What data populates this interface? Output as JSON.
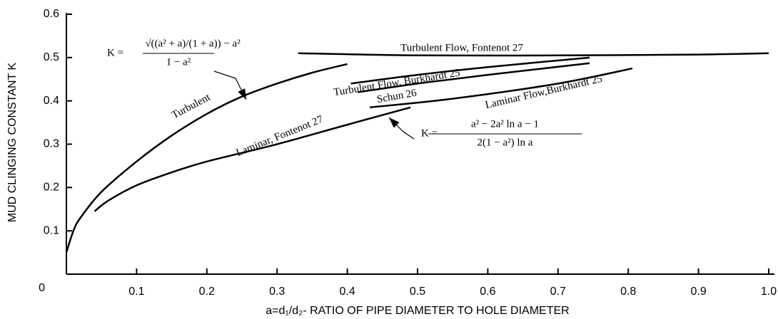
{
  "chart_data": {
    "type": "line",
    "ylabel": "MUD CLINGING CONSTANT K",
    "xlabel": "a=d₁/d₂- RATIO OF PIPE DIAMETER TO HOLE DIAMETER",
    "xlim": [
      0,
      1.0
    ],
    "ylim": [
      0,
      0.6
    ],
    "xticks": [
      0.1,
      0.2,
      0.3,
      0.4,
      0.5,
      0.6,
      0.7,
      0.8,
      0.9,
      {
        "value": 1.0,
        "label": "1.0"
      }
    ],
    "yticks": [
      0,
      0.1,
      0.2,
      0.3,
      0.4,
      0.5,
      0.6
    ],
    "series": [
      {
        "name": "Turbulent",
        "color": "#000000",
        "x": [
          0.0,
          0.01,
          0.02,
          0.05,
          0.1,
          0.15,
          0.2,
          0.25,
          0.3,
          0.35,
          0.4
        ],
        "values": [
          0.05,
          0.1,
          0.13,
          0.19,
          0.26,
          0.32,
          0.37,
          0.41,
          0.44,
          0.465,
          0.485
        ]
      },
      {
        "name": "Laminar, Fontenot 27",
        "color": "#000000",
        "x": [
          0.04,
          0.06,
          0.1,
          0.15,
          0.2,
          0.3,
          0.4,
          0.49
        ],
        "values": [
          0.145,
          0.17,
          0.205,
          0.235,
          0.26,
          0.3,
          0.345,
          0.385
        ]
      },
      {
        "name": "Turbulent Flow, Fontenot 27",
        "color": "#000000",
        "x": [
          0.33,
          0.5,
          0.7,
          0.9,
          1.0
        ],
        "values": [
          0.51,
          0.505,
          0.505,
          0.507,
          0.51
        ]
      },
      {
        "name": "Turbulent Flow, Burkhardt 25",
        "color": "#000000",
        "x": [
          0.405,
          0.5,
          0.6,
          0.745
        ],
        "values": [
          0.44,
          0.46,
          0.478,
          0.5
        ]
      },
      {
        "name": "Schun 26",
        "color": "#000000",
        "x": [
          0.415,
          0.5,
          0.6,
          0.745
        ],
        "values": [
          0.42,
          0.44,
          0.46,
          0.487
        ]
      },
      {
        "name": "Laminar Flow,Burkhardt 25",
        "color": "#000000",
        "x": [
          0.432,
          0.55,
          0.7,
          0.806
        ],
        "values": [
          0.385,
          0.405,
          0.44,
          0.475
        ]
      }
    ],
    "annotations": [
      {
        "lhs": "K =",
        "numerator": "√((a² + a)/(1 + a)) − a²",
        "denominator": "1 − a²"
      },
      {
        "lhs": "K =",
        "numerator": "a² − 2a² ln a − 1",
        "denominator": "2(1 − a²) ln a"
      }
    ]
  }
}
